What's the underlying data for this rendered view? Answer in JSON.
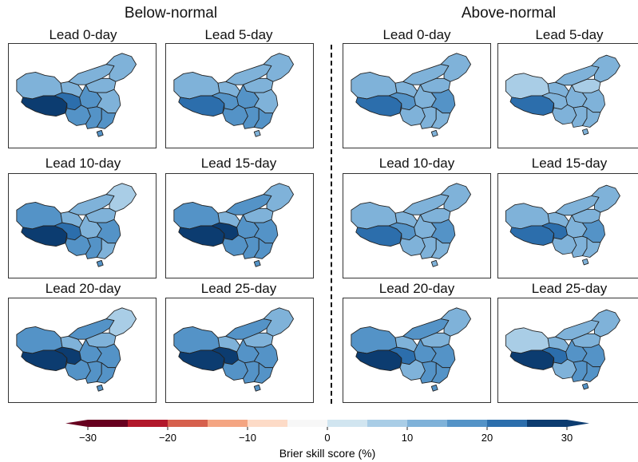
{
  "groups": [
    {
      "title": "Below-normal"
    },
    {
      "title": "Above-normal"
    }
  ],
  "panels": [
    {
      "group": 0,
      "label": "Lead 0-day",
      "regions": {
        "xinjiang": 12,
        "qinghai": 22,
        "tibet": 32,
        "gansu": 14,
        "innermongolia": 10,
        "northeast": 12,
        "north": 10,
        "central": 15,
        "east": 14,
        "southwest": 18,
        "south": 17,
        "southeast": 16,
        "hainan": 17
      }
    },
    {
      "group": 0,
      "label": "Lead 5-day",
      "regions": {
        "xinjiang": 14,
        "qinghai": 18,
        "tibet": 24,
        "gansu": 12,
        "innermongolia": 12,
        "northeast": 14,
        "north": 12,
        "central": 15,
        "east": 13,
        "southwest": 16,
        "south": 15,
        "southeast": 15,
        "hainan": 14
      }
    },
    {
      "group": 0,
      "label": "Lead 10-day",
      "regions": {
        "xinjiang": 18,
        "qinghai": 24,
        "tibet": 30,
        "gansu": 13,
        "innermongolia": 14,
        "northeast": 8,
        "north": 10,
        "central": 14,
        "east": 15,
        "southwest": 16,
        "south": 15,
        "southeast": 14,
        "hainan": 16
      }
    },
    {
      "group": 0,
      "label": "Lead 15-day",
      "regions": {
        "xinjiang": 16,
        "qinghai": 26,
        "tibet": 32,
        "gansu": 13,
        "innermongolia": 15,
        "northeast": 10,
        "north": 12,
        "central": 16,
        "east": 15,
        "southwest": 18,
        "south": 16,
        "southeast": 15,
        "hainan": 16
      }
    },
    {
      "group": 0,
      "label": "Lead 20-day",
      "regions": {
        "xinjiang": 16,
        "qinghai": 30,
        "tibet": 33,
        "gansu": 12,
        "innermongolia": 15,
        "northeast": 9,
        "north": 13,
        "central": 15,
        "east": 16,
        "southwest": 18,
        "south": 16,
        "southeast": 15,
        "hainan": 15
      }
    },
    {
      "group": 0,
      "label": "Lead 25-day",
      "regions": {
        "xinjiang": 17,
        "qinghai": 30,
        "tibet": 33,
        "gansu": 13,
        "innermongolia": 15,
        "northeast": 10,
        "north": 13,
        "central": 16,
        "east": 15,
        "southwest": 18,
        "south": 16,
        "southeast": 15,
        "hainan": 16
      }
    },
    {
      "group": 1,
      "label": "Lead 0-day",
      "regions": {
        "xinjiang": 10,
        "qinghai": 16,
        "tibet": 22,
        "gansu": 12,
        "innermongolia": 12,
        "northeast": 14,
        "north": 10,
        "central": 13,
        "east": 16,
        "southwest": 13,
        "south": 14,
        "southeast": 14,
        "hainan": 14
      }
    },
    {
      "group": 1,
      "label": "Lead 5-day",
      "regions": {
        "xinjiang": 8,
        "qinghai": 14,
        "tibet": 22,
        "gansu": 12,
        "innermongolia": 10,
        "northeast": 12,
        "north": 9,
        "central": 12,
        "east": 14,
        "southwest": 11,
        "south": 12,
        "southeast": 13,
        "hainan": 12
      }
    },
    {
      "group": 1,
      "label": "Lead 10-day",
      "regions": {
        "xinjiang": 14,
        "qinghai": 18,
        "tibet": 22,
        "gansu": 13,
        "innermongolia": 13,
        "northeast": 10,
        "north": 10,
        "central": 14,
        "east": 15,
        "southwest": 12,
        "south": 14,
        "southeast": 13,
        "hainan": 14
      }
    },
    {
      "group": 1,
      "label": "Lead 15-day",
      "regions": {
        "xinjiang": 14,
        "qinghai": 20,
        "tibet": 24,
        "gansu": 13,
        "innermongolia": 14,
        "northeast": 12,
        "north": 11,
        "central": 14,
        "east": 15,
        "southwest": 13,
        "south": 14,
        "southeast": 14,
        "hainan": 14
      }
    },
    {
      "group": 1,
      "label": "Lead 20-day",
      "regions": {
        "xinjiang": 15,
        "qinghai": 22,
        "tibet": 28,
        "gansu": 13,
        "innermongolia": 15,
        "northeast": 10,
        "north": 12,
        "central": 15,
        "east": 15,
        "southwest": 14,
        "south": 15,
        "southeast": 15,
        "hainan": 15
      }
    },
    {
      "group": 1,
      "label": "Lead 25-day",
      "regions": {
        "xinjiang": 9,
        "qinghai": 22,
        "tibet": 28,
        "gansu": 13,
        "innermongolia": 14,
        "northeast": 10,
        "north": 12,
        "central": 15,
        "east": 16,
        "southwest": 14,
        "south": 15,
        "southeast": 15,
        "hainan": 15
      }
    }
  ],
  "colorbar": {
    "label": "Brier skill score (%)",
    "ticks": [
      "−30",
      "−20",
      "−10",
      "0",
      "10",
      "20",
      "30"
    ],
    "bounds": [
      -30,
      -25,
      -20,
      -15,
      -10,
      -5,
      0,
      5,
      10,
      15,
      20,
      25,
      30
    ],
    "colors": [
      "#67001f",
      "#b2182b",
      "#d6604d",
      "#f4a582",
      "#fddbc7",
      "#f7f7f7",
      "#d1e5f0",
      "#a9cde6",
      "#7fb2d9",
      "#5493c7",
      "#2c6eac",
      "#0c3c70"
    ],
    "extend": "both"
  }
}
